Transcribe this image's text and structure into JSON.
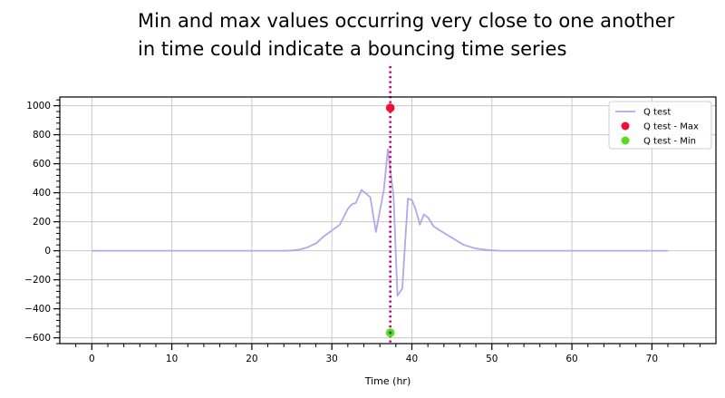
{
  "annotation": {
    "line1": "Min and max values occurring very close to one another",
    "line2": "in time could indicate a bouncing time series"
  },
  "chart_data": {
    "type": "line",
    "title": "",
    "xlabel": "Time (hr)",
    "ylabel": "",
    "xlim": [
      -4,
      78
    ],
    "ylim": [
      -640,
      1060
    ],
    "xticks": [
      0,
      10,
      20,
      30,
      40,
      50,
      60,
      70
    ],
    "yticks": [
      -600,
      -400,
      -200,
      0,
      200,
      400,
      600,
      800,
      1000
    ],
    "grid": true,
    "legend_position": "top-right",
    "series": [
      {
        "name": "Q test",
        "kind": "line",
        "color": "#b3a6ea",
        "x": [
          0,
          5,
          10,
          15,
          20,
          24,
          25,
          26,
          27,
          28,
          29,
          30,
          31,
          32,
          32.5,
          33,
          33.7,
          34.8,
          35.5,
          36.5,
          37,
          37.4,
          37.7,
          38.2,
          38.8,
          39.5,
          40,
          40.5,
          41,
          41.5,
          42,
          42.7,
          43.5,
          45,
          46.5,
          48,
          49.5,
          51,
          55,
          60,
          65,
          70,
          72
        ],
        "y": [
          0,
          0,
          0,
          0,
          0,
          0,
          2,
          8,
          25,
          50,
          100,
          140,
          180,
          290,
          320,
          330,
          420,
          370,
          130,
          420,
          700,
          520,
          380,
          -310,
          -260,
          360,
          350,
          280,
          180,
          250,
          230,
          170,
          140,
          90,
          40,
          15,
          5,
          0,
          0,
          0,
          0,
          0,
          0
        ]
      },
      {
        "name": "Q test - Max",
        "kind": "point",
        "color": "#ee1133",
        "x": [
          37.3
        ],
        "y": [
          985
        ]
      },
      {
        "name": "Q test - Min",
        "kind": "point",
        "color": "#55dd22",
        "x": [
          37.3
        ],
        "y": [
          -565
        ]
      }
    ],
    "vline": {
      "x": 37.3,
      "color": "#cc0077"
    }
  }
}
